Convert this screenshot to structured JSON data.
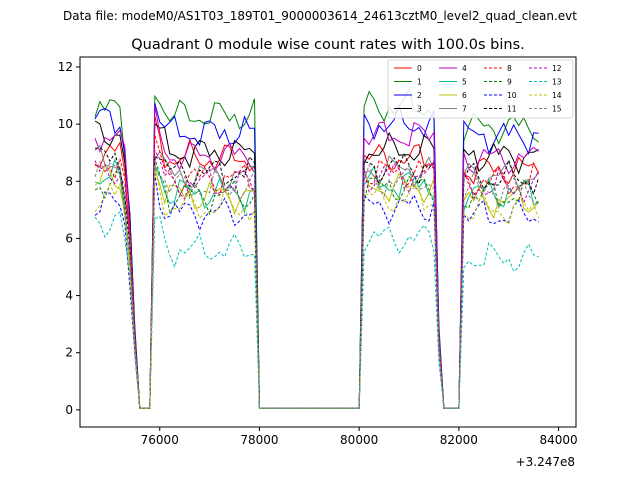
{
  "chart_data": {
    "type": "line",
    "suptitle": "Data file: modeM0/AS1T03_189T01_9000003614_24613cztM0_level2_quad_clean.evt",
    "title": "Quadrant 0 module wise count rates with 100.0s bins.",
    "xlabel": "",
    "ylabel": "",
    "x_offset_label": "+3.247e8",
    "xlim": [
      74400,
      84350
    ],
    "ylim": [
      -0.6,
      12.35
    ],
    "xticks": [
      76000,
      78000,
      80000,
      82000,
      84000
    ],
    "xtick_labels": [
      "76000",
      "78000",
      "80000",
      "82000",
      "84000"
    ],
    "yticks": [
      0,
      2,
      4,
      6,
      8,
      10,
      12
    ],
    "ytick_labels": [
      "0",
      "2",
      "4",
      "6",
      "8",
      "10",
      "12"
    ],
    "legend_position": "top-right",
    "grid": false,
    "segments": [
      {
        "start": 74700,
        "end": 75500
      },
      {
        "start": 75900,
        "end": 77950
      },
      {
        "start": 80100,
        "end": 81600
      },
      {
        "start": 82100,
        "end": 83600
      }
    ],
    "series": [
      {
        "name": "0",
        "color": "#ff0000",
        "dash": false,
        "levels": [
          9.0,
          8.8,
          8.8,
          8.4
        ]
      },
      {
        "name": "1",
        "color": "#008000",
        "dash": false,
        "levels": [
          10.5,
          10.3,
          10.6,
          9.9
        ]
      },
      {
        "name": "2",
        "color": "#0000ff",
        "dash": false,
        "levels": [
          10.2,
          9.7,
          10.0,
          9.6
        ]
      },
      {
        "name": "3",
        "color": "#000000",
        "dash": false,
        "levels": [
          9.7,
          9.0,
          9.1,
          8.9
        ]
      },
      {
        "name": "4",
        "color": "#bf00bf",
        "dash": false,
        "levels": [
          9.6,
          8.9,
          9.6,
          8.8
        ]
      },
      {
        "name": "5",
        "color": "#00bf8f",
        "dash": false,
        "levels": [
          8.1,
          7.6,
          7.9,
          7.6
        ]
      },
      {
        "name": "6",
        "color": "#bfbf00",
        "dash": false,
        "levels": [
          8.0,
          7.5,
          7.8,
          7.3
        ]
      },
      {
        "name": "7",
        "color": "#808080",
        "dash": false,
        "levels": [
          8.7,
          8.2,
          8.4,
          8.2
        ]
      },
      {
        "name": "8",
        "color": "#ff0000",
        "dash": true,
        "levels": [
          8.6,
          8.1,
          8.3,
          8.0
        ]
      },
      {
        "name": "9",
        "color": "#008000",
        "dash": true,
        "levels": [
          7.9,
          7.5,
          7.8,
          7.5
        ]
      },
      {
        "name": "10",
        "color": "#0000ff",
        "dash": true,
        "levels": [
          7.2,
          6.9,
          7.1,
          6.8
        ]
      },
      {
        "name": "11",
        "color": "#000000",
        "dash": true,
        "levels": [
          8.8,
          8.3,
          8.5,
          8.1
        ]
      },
      {
        "name": "12",
        "color": "#bf00bf",
        "dash": true,
        "levels": [
          8.4,
          7.9,
          8.2,
          7.8
        ]
      },
      {
        "name": "13",
        "color": "#00bfbf",
        "dash": true,
        "levels": [
          6.6,
          5.6,
          6.0,
          5.3
        ]
      },
      {
        "name": "14",
        "color": "#bfbf00",
        "dash": true,
        "levels": [
          7.5,
          7.1,
          7.4,
          7.0
        ]
      },
      {
        "name": "15",
        "color": "#808080",
        "dash": true,
        "levels": [
          8.3,
          7.8,
          8.0,
          7.7
        ]
      }
    ]
  }
}
